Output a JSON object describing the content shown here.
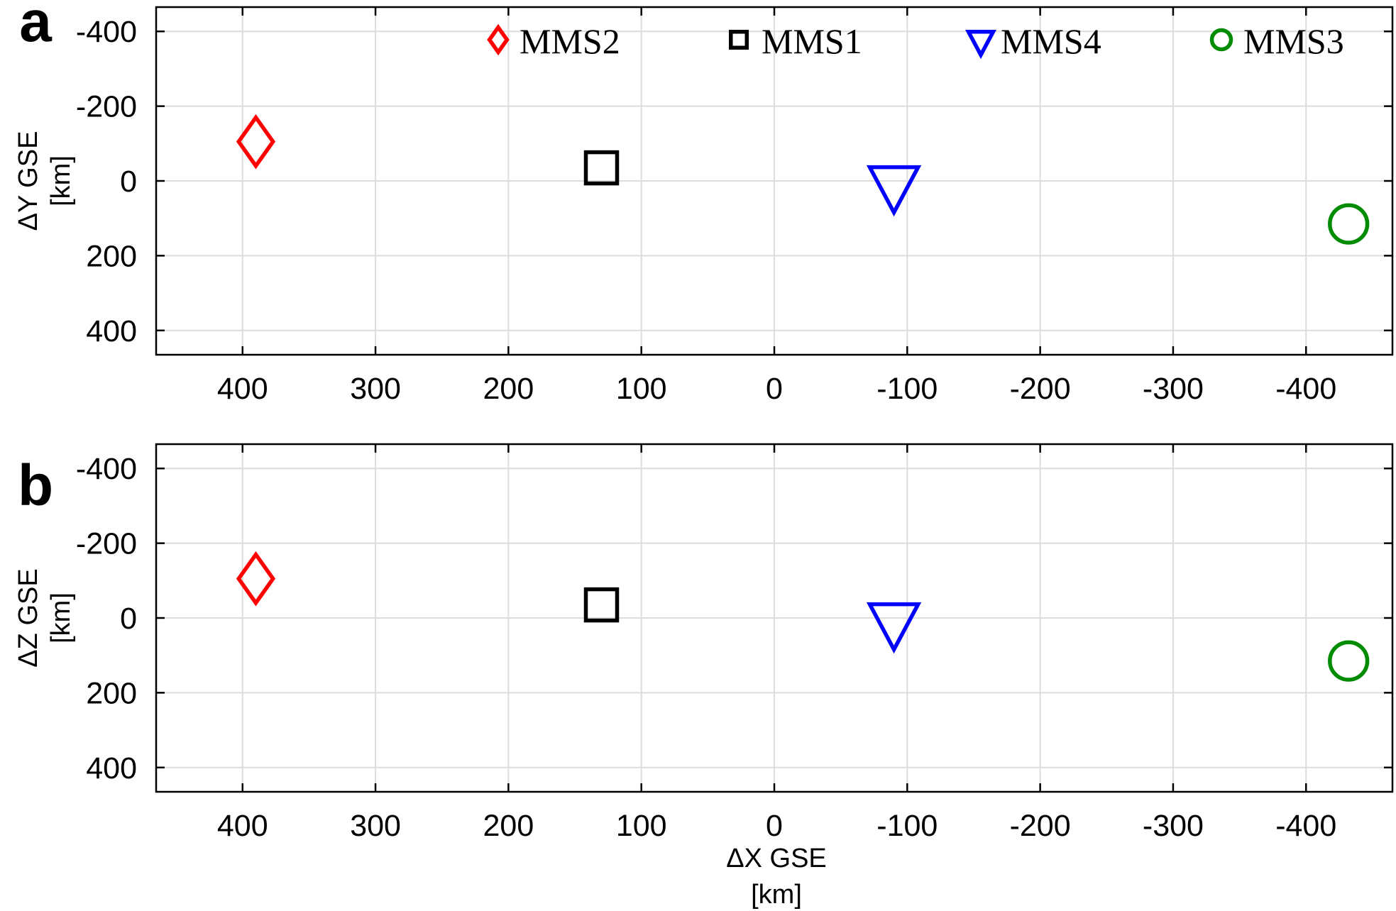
{
  "chart_data": [
    {
      "panel": "a",
      "type": "scatter",
      "xlabel": "ΔX GSE\n[km]",
      "xlabel_visible": false,
      "ylabel": "ΔY GSE\n[km]",
      "xlim": [
        465,
        -465
      ],
      "ylim": [
        -465,
        465
      ],
      "x_ticks": [
        400,
        300,
        200,
        100,
        0,
        -100,
        -200,
        -300,
        -400
      ],
      "x_tick_labels": [
        "400",
        "300",
        "200",
        "100",
        "0",
        "-100",
        "-200",
        "-300",
        "-400"
      ],
      "y_ticks": [
        -400,
        -200,
        0,
        200,
        400
      ],
      "y_tick_labels": [
        "-400",
        "-200",
        "0",
        "200",
        "400"
      ],
      "grid": true,
      "legend": "top",
      "series": [
        {
          "name": "MMS2",
          "marker": "diamond",
          "color": "#ff0000",
          "x": [
            390
          ],
          "y": [
            -105
          ]
        },
        {
          "name": "MMS1",
          "marker": "square",
          "color": "#000000",
          "x": [
            130
          ],
          "y": [
            -35
          ]
        },
        {
          "name": "MMS4",
          "marker": "triangle-down",
          "color": "#0000ff",
          "x": [
            -90
          ],
          "y": [
            5
          ]
        },
        {
          "name": "MMS3",
          "marker": "circle",
          "color": "#008c00",
          "x": [
            -432
          ],
          "y": [
            115
          ]
        }
      ]
    },
    {
      "panel": "b",
      "type": "scatter",
      "xlabel": "ΔX GSE\n[km]",
      "xlabel_visible": true,
      "ylabel": "ΔZ GSE\n[km]",
      "xlim": [
        465,
        -465
      ],
      "ylim": [
        -465,
        465
      ],
      "x_ticks": [
        400,
        300,
        200,
        100,
        0,
        -100,
        -200,
        -300,
        -400
      ],
      "x_tick_labels": [
        "400",
        "300",
        "200",
        "100",
        "0",
        "-100",
        "-200",
        "-300",
        "-400"
      ],
      "y_ticks": [
        -400,
        -200,
        0,
        200,
        400
      ],
      "y_tick_labels": [
        "-400",
        "-200",
        "0",
        "200",
        "400"
      ],
      "grid": true,
      "legend": "none",
      "series": [
        {
          "name": "MMS2",
          "marker": "diamond",
          "color": "#ff0000",
          "x": [
            390
          ],
          "y": [
            -105
          ]
        },
        {
          "name": "MMS1",
          "marker": "square",
          "color": "#000000",
          "x": [
            130
          ],
          "y": [
            -35
          ]
        },
        {
          "name": "MMS4",
          "marker": "triangle-down",
          "color": "#0000ff",
          "x": [
            -90
          ],
          "y": [
            5
          ]
        },
        {
          "name": "MMS3",
          "marker": "circle",
          "color": "#008c00",
          "x": [
            -432
          ],
          "y": [
            115
          ]
        }
      ]
    }
  ]
}
